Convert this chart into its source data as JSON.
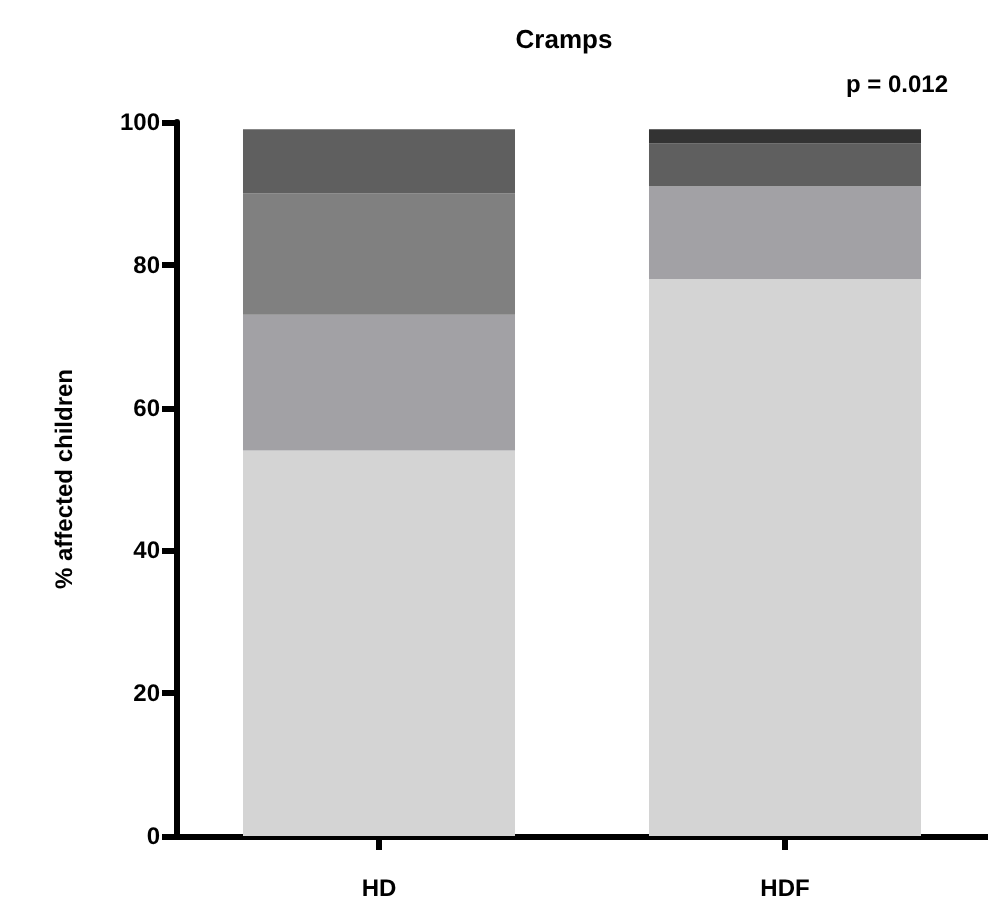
{
  "chart_data": {
    "type": "bar",
    "title": "Cramps",
    "ylabel": "% affected children",
    "annotations": [
      "p = 0.012"
    ],
    "categories": [
      "HD",
      "HDF"
    ],
    "stacked": true,
    "series": [
      {
        "color": "#d4d4d4",
        "values": [
          54,
          78
        ]
      },
      {
        "color": "#a2a1a5",
        "values": [
          19,
          13
        ]
      },
      {
        "color": "#808080",
        "values": [
          17,
          0
        ]
      },
      {
        "color": "#5f5f5f",
        "values": [
          9,
          6
        ]
      },
      {
        "color": "#333333",
        "values": [
          0,
          2
        ]
      }
    ],
    "ylim": [
      0,
      100
    ],
    "yticks": [
      0,
      20,
      40,
      60,
      80,
      100
    ],
    "grid": false
  }
}
